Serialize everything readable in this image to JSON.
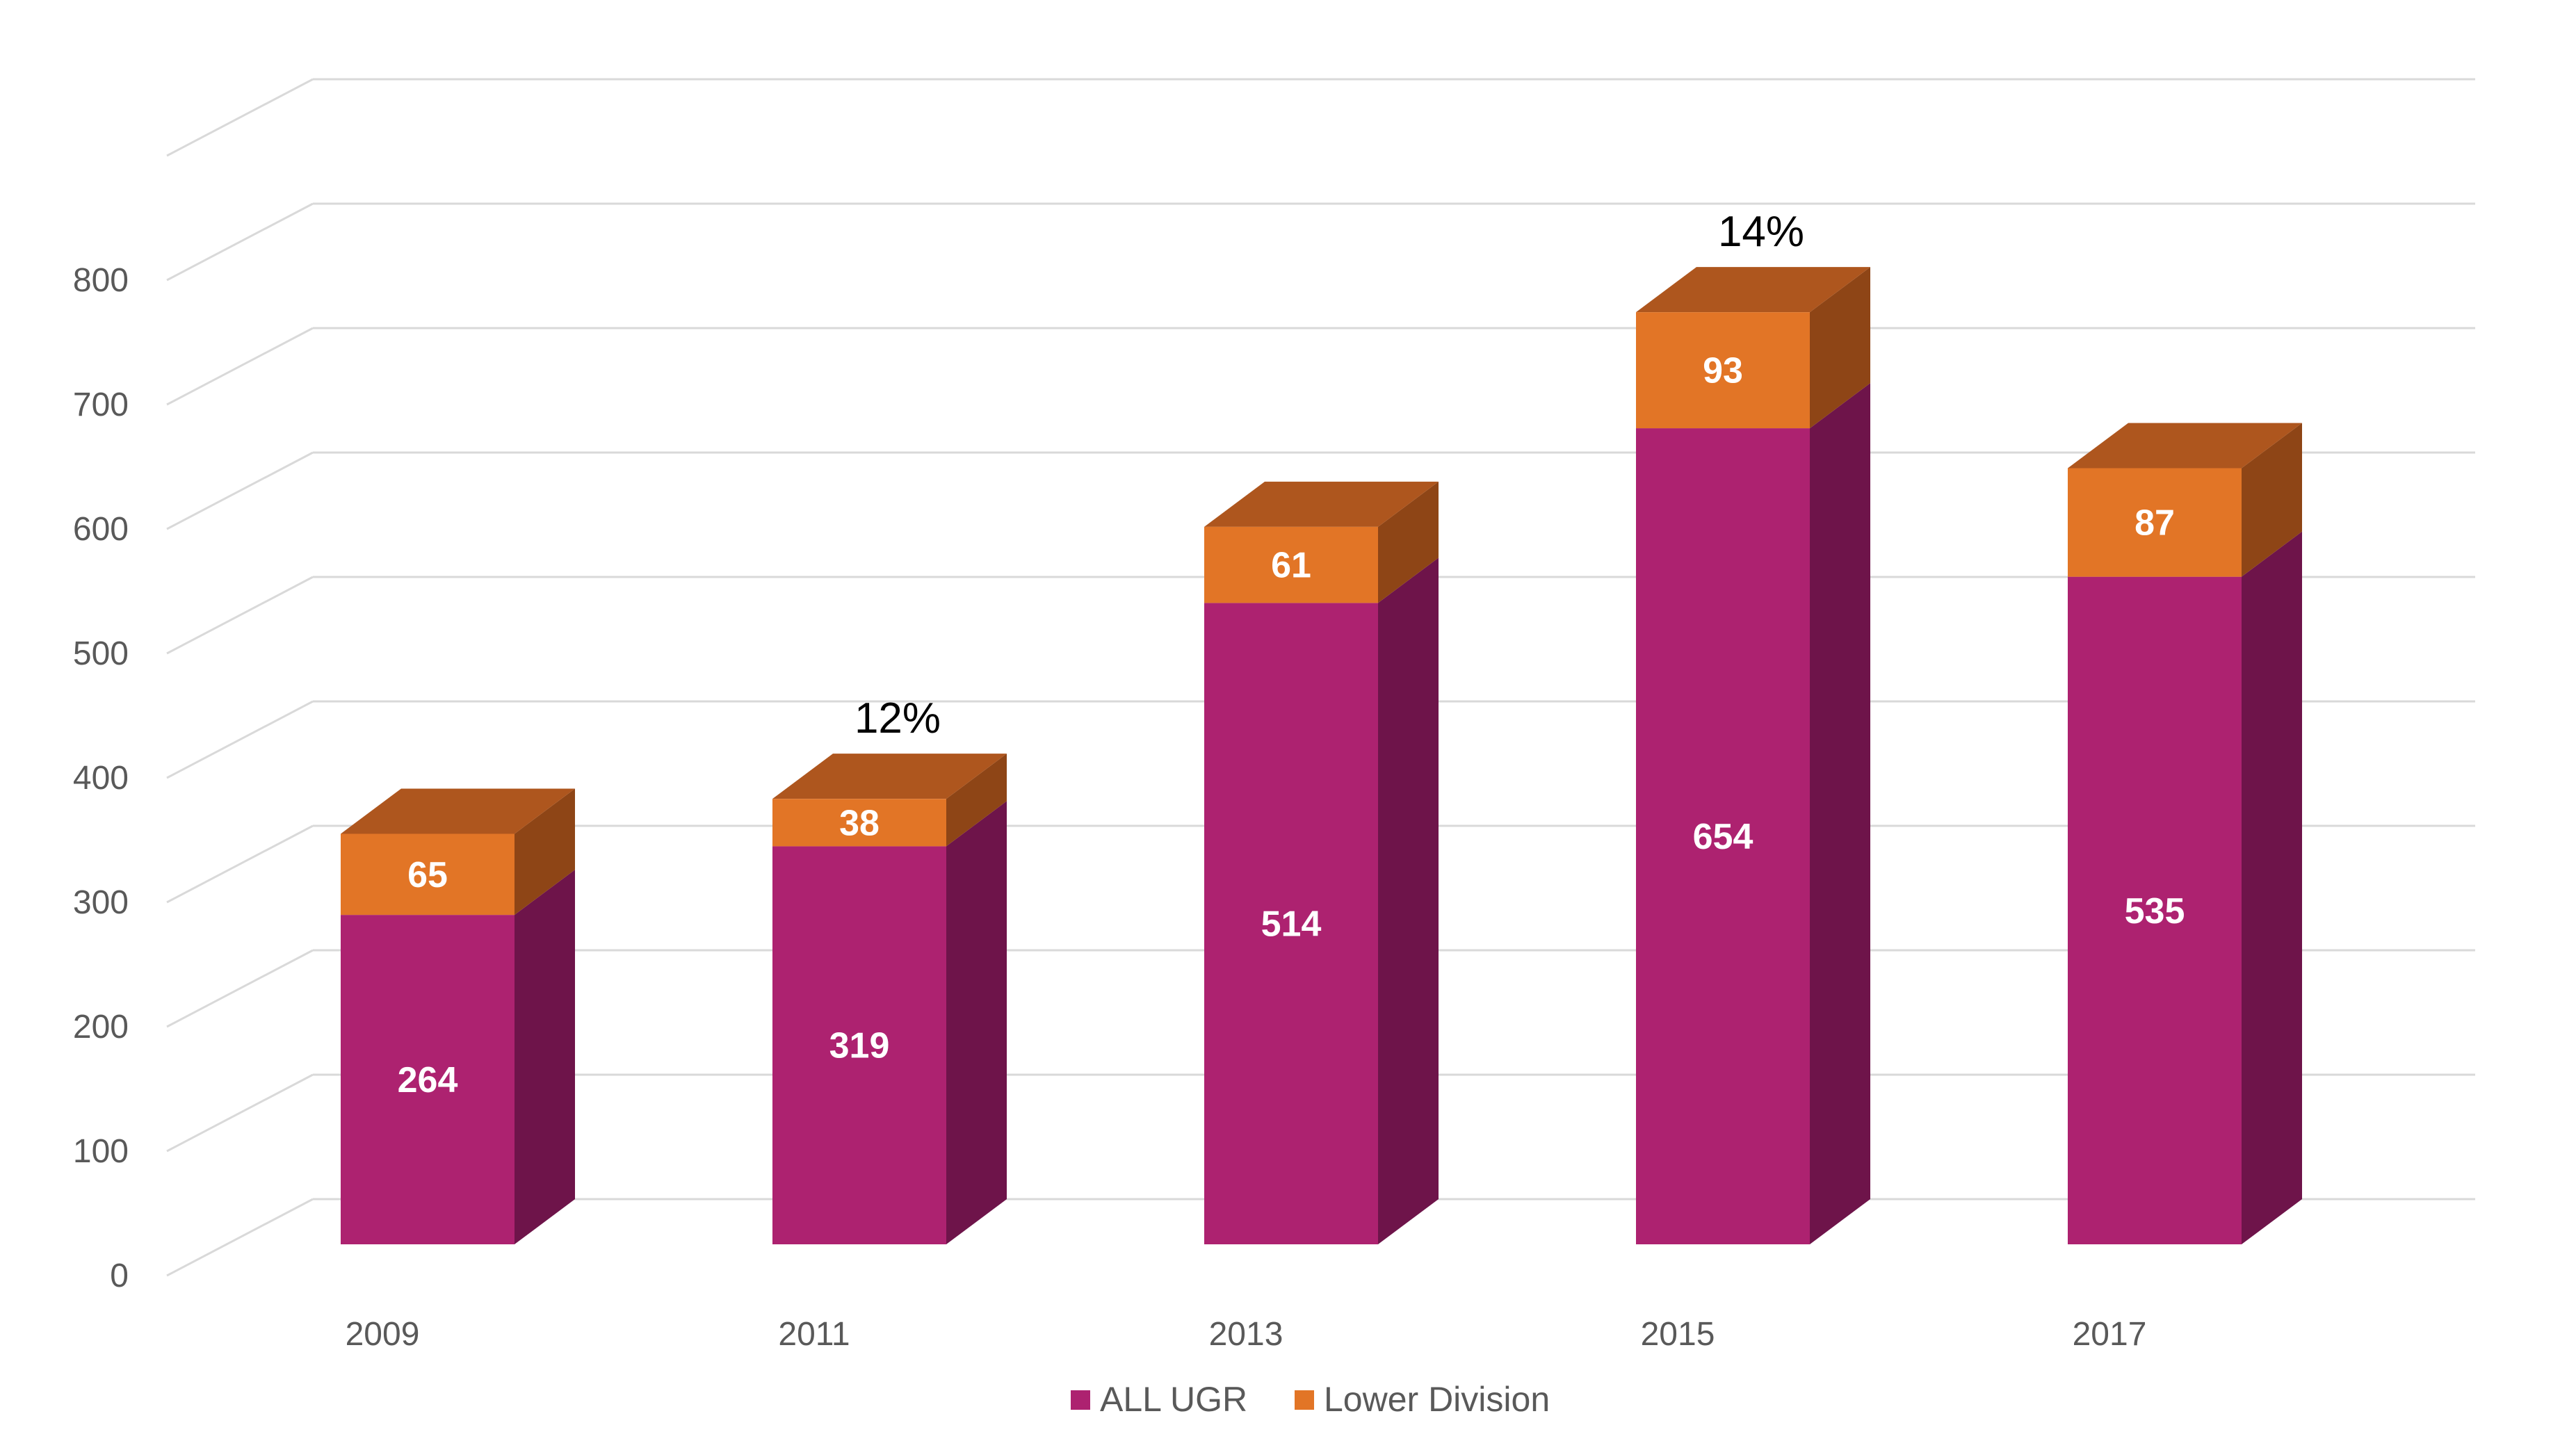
{
  "chart_data": {
    "type": "bar",
    "stacked": true,
    "three_d": true,
    "categories": [
      "2009",
      "2011",
      "2013",
      "2015",
      "2017"
    ],
    "series": [
      {
        "name": "ALL UGR",
        "values": [
          264,
          319,
          514,
          654,
          535
        ],
        "color": "#AD2270",
        "side_color": "#6E144A"
      },
      {
        "name": "Lower Division",
        "values": [
          65,
          38,
          61,
          93,
          87
        ],
        "color": "#E27526",
        "side_color": "#8E4516",
        "top_color": "#AE561E"
      }
    ],
    "annotations": [
      {
        "category": "2011",
        "text": "12%"
      },
      {
        "category": "2015",
        "text": "14%"
      }
    ],
    "yticks": [
      "0",
      "100",
      "200",
      "300",
      "400",
      "500",
      "600",
      "700",
      "800"
    ],
    "ylim": [
      0,
      900
    ],
    "grid": true,
    "legend": "bottom-center",
    "title": "",
    "xlabel": "",
    "ylabel": ""
  }
}
